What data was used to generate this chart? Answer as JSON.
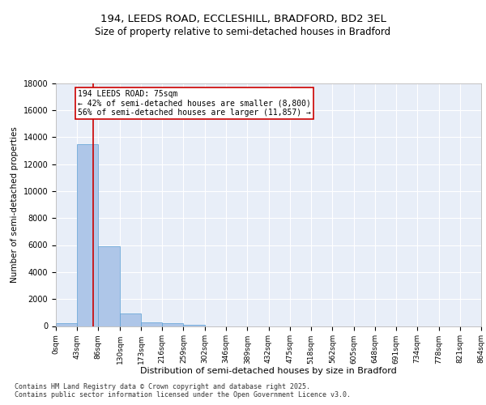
{
  "title_line1": "194, LEEDS ROAD, ECCLESHILL, BRADFORD, BD2 3EL",
  "title_line2": "Size of property relative to semi-detached houses in Bradford",
  "xlabel": "Distribution of semi-detached houses by size in Bradford",
  "ylabel": "Number of semi-detached properties",
  "bar_color": "#aec6e8",
  "bar_edge_color": "#5a9fd4",
  "property_line_x": 75,
  "property_line_color": "#cc0000",
  "annotation_text": "194 LEEDS ROAD: 75sqm\n← 42% of semi-detached houses are smaller (8,800)\n56% of semi-detached houses are larger (11,857) →",
  "annotation_box_color": "#ffffff",
  "annotation_box_edge": "#cc0000",
  "bin_edges": [
    0,
    43,
    86,
    130,
    173,
    216,
    259,
    302,
    346,
    389,
    432,
    475,
    518,
    562,
    605,
    648,
    691,
    734,
    778,
    821,
    864
  ],
  "bin_labels": [
    "0sqm",
    "43sqm",
    "86sqm",
    "130sqm",
    "173sqm",
    "216sqm",
    "259sqm",
    "302sqm",
    "346sqm",
    "389sqm",
    "432sqm",
    "475sqm",
    "518sqm",
    "562sqm",
    "605sqm",
    "648sqm",
    "691sqm",
    "734sqm",
    "778sqm",
    "821sqm",
    "864sqm"
  ],
  "bar_heights": [
    200,
    13500,
    5900,
    950,
    300,
    230,
    90,
    0,
    0,
    0,
    0,
    0,
    0,
    0,
    0,
    0,
    0,
    0,
    0,
    0
  ],
  "ylim": [
    0,
    18000
  ],
  "yticks": [
    0,
    2000,
    4000,
    6000,
    8000,
    10000,
    12000,
    14000,
    16000,
    18000
  ],
  "background_color": "#e8eef8",
  "footer_text": "Contains HM Land Registry data © Crown copyright and database right 2025.\nContains public sector information licensed under the Open Government Licence v3.0.",
  "title_fontsize": 9.5,
  "subtitle_fontsize": 8.5,
  "ylabel_fontsize": 7.5,
  "xlabel_fontsize": 8,
  "tick_fontsize": 6.5,
  "ytick_fontsize": 7,
  "footer_fontsize": 6,
  "annot_fontsize": 7
}
